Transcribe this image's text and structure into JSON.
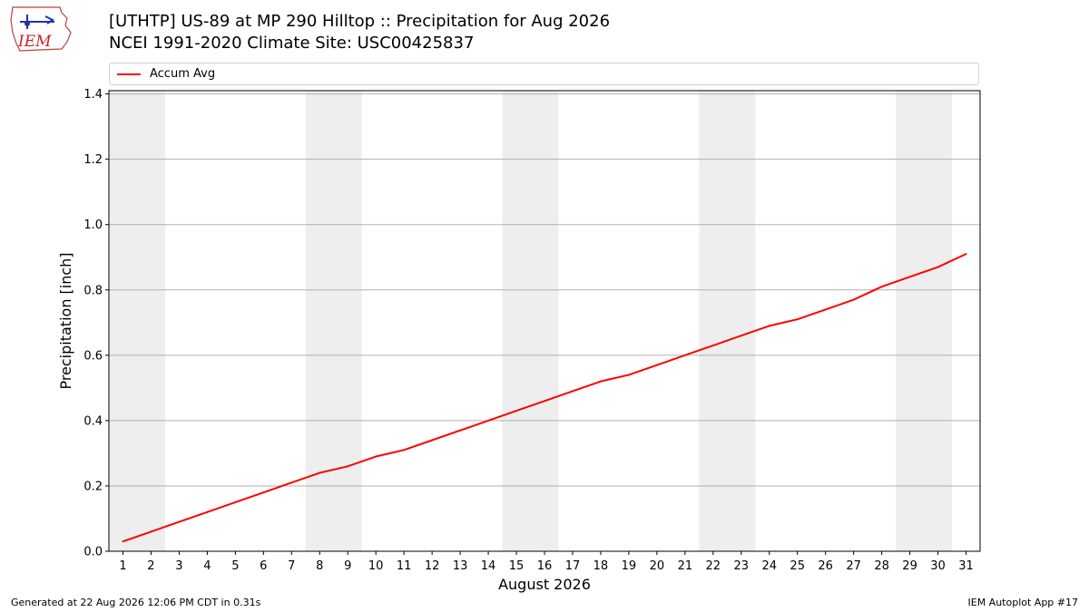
{
  "header": {
    "title_line1": "[UTHTP] US-89 at MP 290 Hilltop  :: Precipitation for Aug 2026",
    "title_line2": "NCEI 1991-2020 Climate Site: USC00425837"
  },
  "logo": {
    "text": "IEM"
  },
  "legend": {
    "entries": [
      {
        "label": "Accum Avg",
        "color": "#ff0000"
      }
    ]
  },
  "footer": {
    "generated": "Generated at 22 Aug 2026 12:06 PM CDT in 0.31s",
    "app": "IEM Autoplot App #17"
  },
  "chart_data": {
    "type": "line",
    "xlabel": "August 2026",
    "ylabel": "Precipitation [inch]",
    "x": [
      1,
      2,
      3,
      4,
      5,
      6,
      7,
      8,
      9,
      10,
      11,
      12,
      13,
      14,
      15,
      16,
      17,
      18,
      19,
      20,
      21,
      22,
      23,
      24,
      25,
      26,
      27,
      28,
      29,
      30,
      31
    ],
    "xlim": [
      0.5,
      31.5
    ],
    "ylim": [
      0,
      1.41
    ],
    "yticks": [
      0.0,
      0.2,
      0.4,
      0.6,
      0.8,
      1.0,
      1.2,
      1.4
    ],
    "ytick_labels": [
      "0.0",
      "0.2",
      "0.4",
      "0.6",
      "0.8",
      "1.0",
      "1.2",
      "1.4"
    ],
    "grid": "horizontal",
    "legend_position": "top, above plot",
    "weekend_shading": [
      [
        1,
        2
      ],
      [
        8,
        9
      ],
      [
        15,
        16
      ],
      [
        22,
        23
      ],
      [
        29,
        30
      ]
    ],
    "shading_color": "#eeeeee",
    "series": [
      {
        "name": "Accum Avg",
        "color": "#ff0000",
        "values": [
          0.03,
          0.06,
          0.09,
          0.12,
          0.15,
          0.18,
          0.21,
          0.24,
          0.26,
          0.29,
          0.31,
          0.34,
          0.37,
          0.4,
          0.43,
          0.46,
          0.49,
          0.52,
          0.54,
          0.57,
          0.6,
          0.63,
          0.66,
          0.69,
          0.71,
          0.74,
          0.77,
          0.81,
          0.84,
          0.87,
          0.91
        ]
      }
    ]
  }
}
